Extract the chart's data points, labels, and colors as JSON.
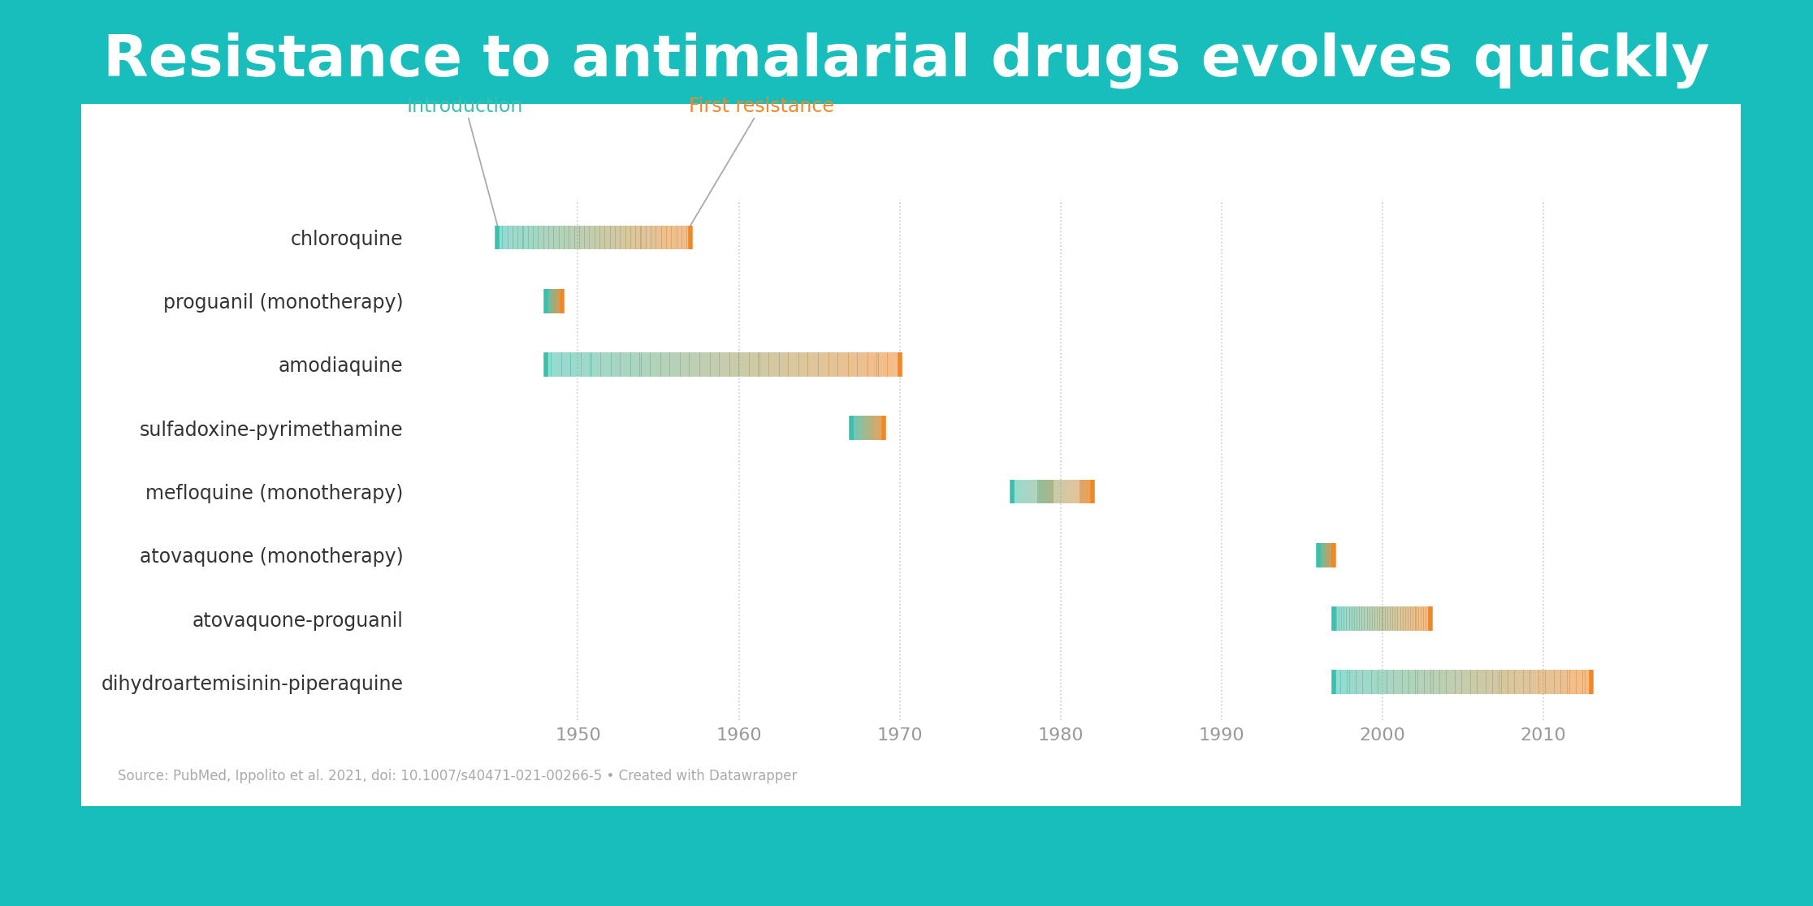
{
  "title": "Resistance to antimalarial drugs evolves quickly",
  "title_color": "#ffffff",
  "background_color": "#17bebb",
  "panel_color": "#ffffff",
  "source_text": "Source: PubMed, Ippolito et al. 2021, doi: 10.1007/s40471-021-00266-5 • Created with Datawrapper",
  "intro_label": "Introduction",
  "resistance_label": "First resistance",
  "intro_color": "#3dbfad",
  "resistance_color": "#f0882a",
  "xlim": [
    1940,
    2020
  ],
  "xticks": [
    1950,
    1960,
    1970,
    1980,
    1990,
    2000,
    2010
  ],
  "drugs": [
    "chloroquine",
    "proguanil (monotherapy)",
    "amodiaquine",
    "sulfadoxine-pyrimethamine",
    "mefloquine (monotherapy)",
    "atovaquone (monotherapy)",
    "atovaquone-proguanil",
    "dihydroartemisinin-piperaquine"
  ],
  "intro_years": [
    1945,
    1948,
    1948,
    1967,
    1977,
    1996,
    1997,
    1997
  ],
  "resistance_years": [
    1957,
    1949,
    1970,
    1969,
    1982,
    1997,
    2003,
    2013
  ]
}
